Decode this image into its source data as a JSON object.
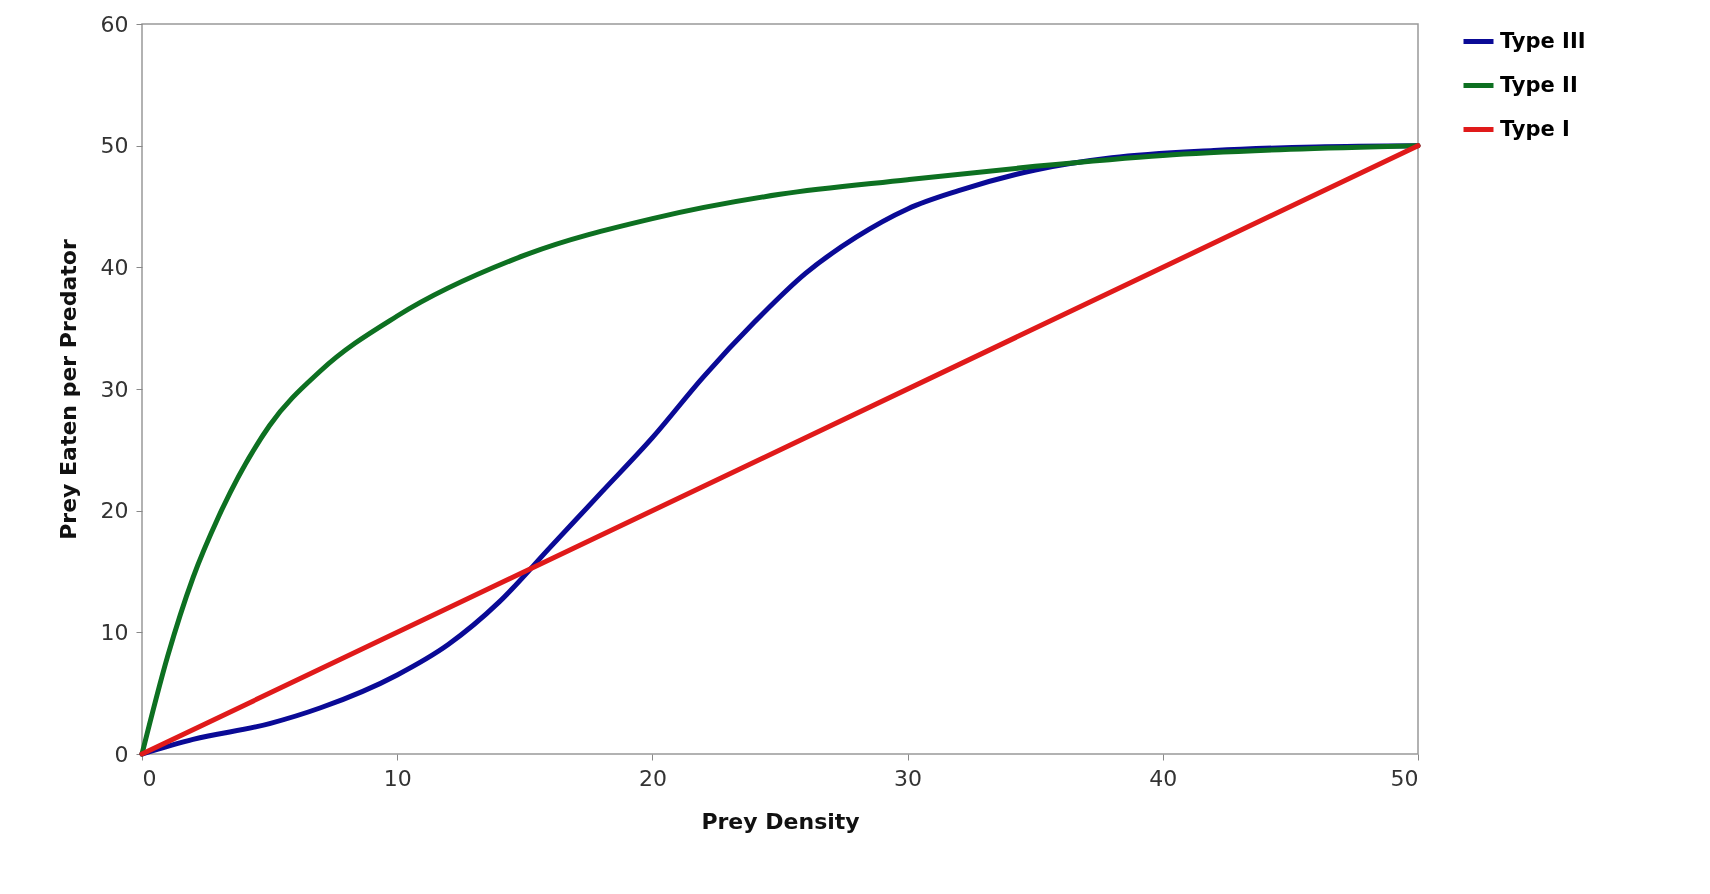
{
  "chart_data": {
    "type": "line",
    "xlabel": "Prey Density",
    "ylabel": "Prey Eaten per Predator",
    "xlim": [
      0,
      50
    ],
    "xticks": [
      0,
      10,
      20,
      30,
      40,
      50
    ],
    "ylim": [
      0,
      60
    ],
    "yticks": [
      0,
      10,
      20,
      30,
      40,
      50,
      60
    ],
    "grid": false,
    "legend": "right",
    "marker": "none",
    "line_style": "solid",
    "series": [
      {
        "name": "Type III",
        "color": "#0a0a96",
        "x": [
          0,
          2,
          5,
          7,
          10,
          12,
          14,
          16,
          18,
          20,
          22,
          24,
          26,
          28,
          30,
          32,
          35,
          38,
          42,
          46,
          50
        ],
        "values": [
          0,
          1.2,
          2.5,
          3.8,
          6.5,
          9,
          12.5,
          17,
          21.5,
          26,
          31,
          35.5,
          39.5,
          42.5,
          44.8,
          46.3,
          48,
          49,
          49.6,
          49.9,
          50
        ]
      },
      {
        "name": "Type II",
        "color": "#0d7021",
        "x": [
          0,
          1,
          2,
          3,
          5,
          7,
          10,
          15,
          20,
          25,
          30,
          35,
          40,
          45,
          50
        ],
        "values": [
          0,
          8,
          14.5,
          19.5,
          27,
          31.5,
          36,
          41,
          44,
          46,
          47.2,
          48.3,
          49.2,
          49.7,
          50
        ]
      },
      {
        "name": "Type I",
        "color": "#e01a1a",
        "x": [
          0,
          50
        ],
        "values": [
          0,
          50
        ]
      }
    ]
  }
}
